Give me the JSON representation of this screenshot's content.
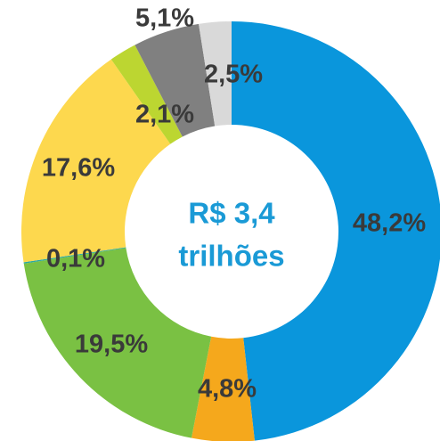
{
  "chart_data": {
    "type": "donut",
    "center_label": [
      "R$ 3,4",
      "trilhões"
    ],
    "values": [
      48.2,
      4.8,
      19.5,
      0.1,
      17.6,
      2.1,
      5.1,
      2.5
    ],
    "value_labels": [
      "48,2%",
      "4,8%",
      "19,5%",
      "0,1%",
      "17,6%",
      "2,1%",
      "5,1%",
      "2,5%"
    ],
    "colors": [
      "#0a96dc",
      "#f5a81c",
      "#7ac143",
      "#2aa9a0",
      "#fdd84e",
      "#bcd631",
      "#808080",
      "#d9d9d9"
    ]
  }
}
